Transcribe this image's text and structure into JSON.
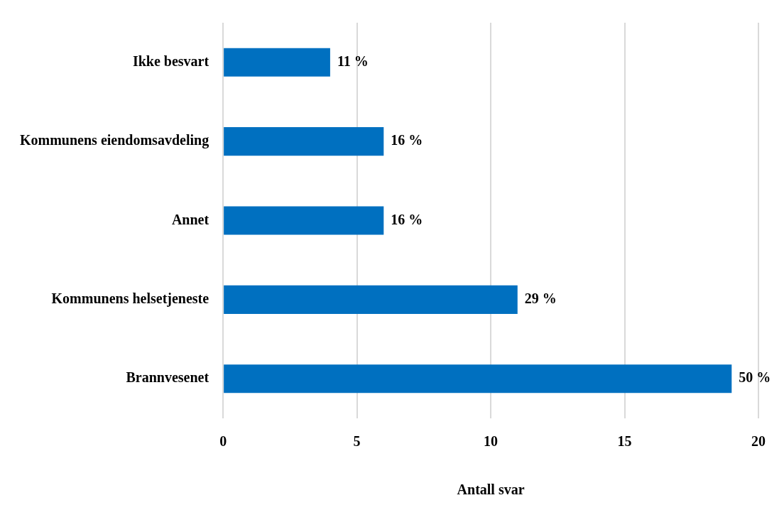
{
  "chart_data": {
    "type": "bar",
    "orientation": "horizontal",
    "xlabel": "Antall svar",
    "categories": [
      "Ikke besvart",
      "Kommunens eiendomsavdeling",
      "Annet",
      "Kommunens helsetjeneste",
      "Brannvesenet"
    ],
    "values": [
      4,
      6,
      6,
      11,
      19
    ],
    "annotations": [
      {
        "text": "11 %",
        "x": 4,
        "y": "Ikke besvart"
      },
      {
        "text": "16 %",
        "x": 6,
        "y": "Kommunens eiendomsavdeling"
      },
      {
        "text": "16 %",
        "x": 6,
        "y": "Annet"
      },
      {
        "text": "29 %",
        "x": 11,
        "y": "Kommunens helsetjeneste"
      },
      {
        "text": "50 %",
        "x": 19,
        "y": "Brannvesenet"
      }
    ],
    "color": "#0070c0",
    "xlim": [
      0,
      20
    ],
    "xticks": [
      0,
      5,
      10,
      15,
      20
    ],
    "grid": "x",
    "legend": false
  }
}
